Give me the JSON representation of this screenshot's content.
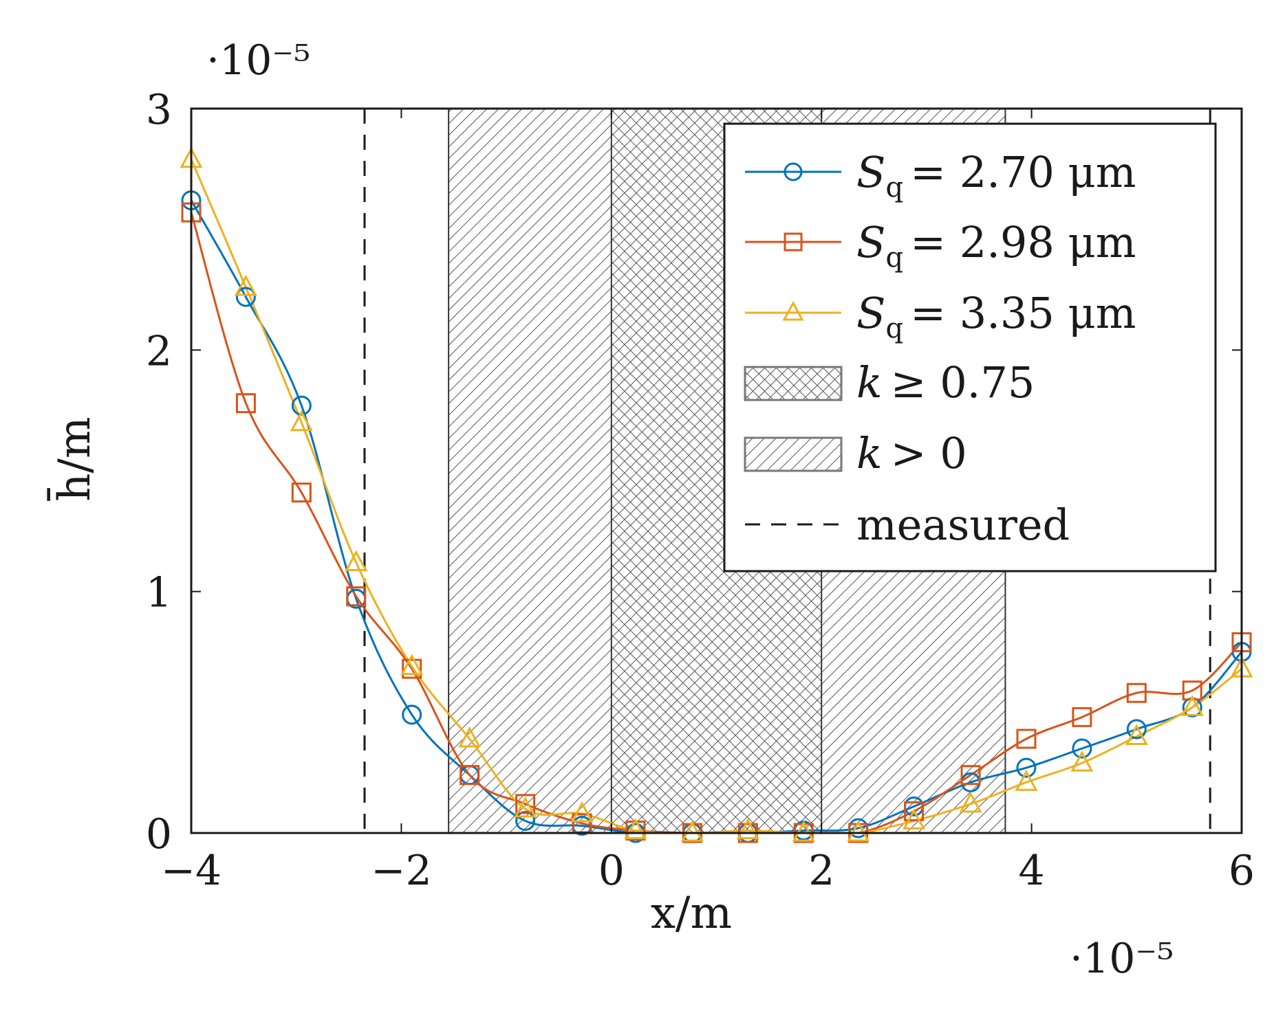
{
  "chart_data": {
    "type": "line",
    "xlabel": "x/m",
    "ylabel": "h̄/m",
    "x_multiplier": "·10⁻⁵",
    "y_multiplier": "·10⁻⁵",
    "xlim": [
      -4,
      6
    ],
    "ylim": [
      0,
      3
    ],
    "x_ticks": [
      "−4",
      "−2",
      "0",
      "2",
      "4",
      "6"
    ],
    "y_ticks": [
      "0",
      "1",
      "2",
      "3"
    ],
    "grid": false,
    "legend_position": "top-right",
    "legend_labels": {
      "sq_symbol": "S",
      "sq_subscript": "q",
      "k_symbol": "k",
      "k_high_rel": "≥ 0.75",
      "k_low_rel": "> 0"
    },
    "series": [
      {
        "name": "= 2.70 μm",
        "color": "#0072BD",
        "marker": "circle",
        "x": [
          -4.0,
          -3.48,
          -2.95,
          -2.43,
          -1.9,
          -1.35,
          -0.82,
          -0.28,
          0.23,
          0.77,
          1.3,
          1.83,
          2.35,
          2.88,
          3.42,
          3.95,
          4.48,
          5.0,
          5.53,
          6.0
        ],
        "y": [
          2.62,
          2.22,
          1.77,
          0.97,
          0.49,
          0.24,
          0.05,
          0.03,
          0.0,
          0.0,
          0.0,
          0.01,
          0.02,
          0.11,
          0.21,
          0.27,
          0.35,
          0.43,
          0.52,
          0.75
        ]
      },
      {
        "name": "= 2.98 μm",
        "color": "#D95319",
        "marker": "square",
        "x": [
          -4.0,
          -3.48,
          -2.95,
          -2.43,
          -1.9,
          -1.35,
          -0.82,
          -0.28,
          0.23,
          0.77,
          1.3,
          1.83,
          2.35,
          2.88,
          3.42,
          3.95,
          4.48,
          5.0,
          5.53,
          6.0
        ],
        "y": [
          2.57,
          1.78,
          1.41,
          0.98,
          0.68,
          0.24,
          0.12,
          0.04,
          0.01,
          0.0,
          0.0,
          0.0,
          0.0,
          0.09,
          0.24,
          0.39,
          0.48,
          0.58,
          0.59,
          0.79
        ]
      },
      {
        "name": "= 3.35 μm",
        "color": "#EDB120",
        "marker": "triangle",
        "x": [
          -4.0,
          -3.48,
          -2.95,
          -2.43,
          -1.9,
          -1.35,
          -0.82,
          -0.28,
          0.23,
          0.77,
          1.3,
          1.83,
          2.35,
          2.88,
          3.42,
          3.95,
          4.48,
          5.0,
          5.53,
          6.0
        ],
        "y": [
          2.79,
          2.26,
          1.7,
          1.12,
          0.69,
          0.39,
          0.1,
          0.08,
          0.01,
          0.0,
          0.01,
          0.0,
          0.0,
          0.05,
          0.12,
          0.21,
          0.29,
          0.4,
          0.52,
          0.68
        ]
      }
    ],
    "regions": [
      {
        "label": "k > 0",
        "pattern": "diagonal-hatch",
        "x_from": -1.55,
        "x_to": 3.75
      },
      {
        "label": "k ≥ 0.75",
        "pattern": "cross-hatch",
        "x_from": 0.0,
        "x_to": 2.0
      }
    ],
    "vlines": [
      {
        "label": "measured",
        "style": "dashed",
        "x": [
          -2.35,
          5.7
        ]
      }
    ]
  }
}
